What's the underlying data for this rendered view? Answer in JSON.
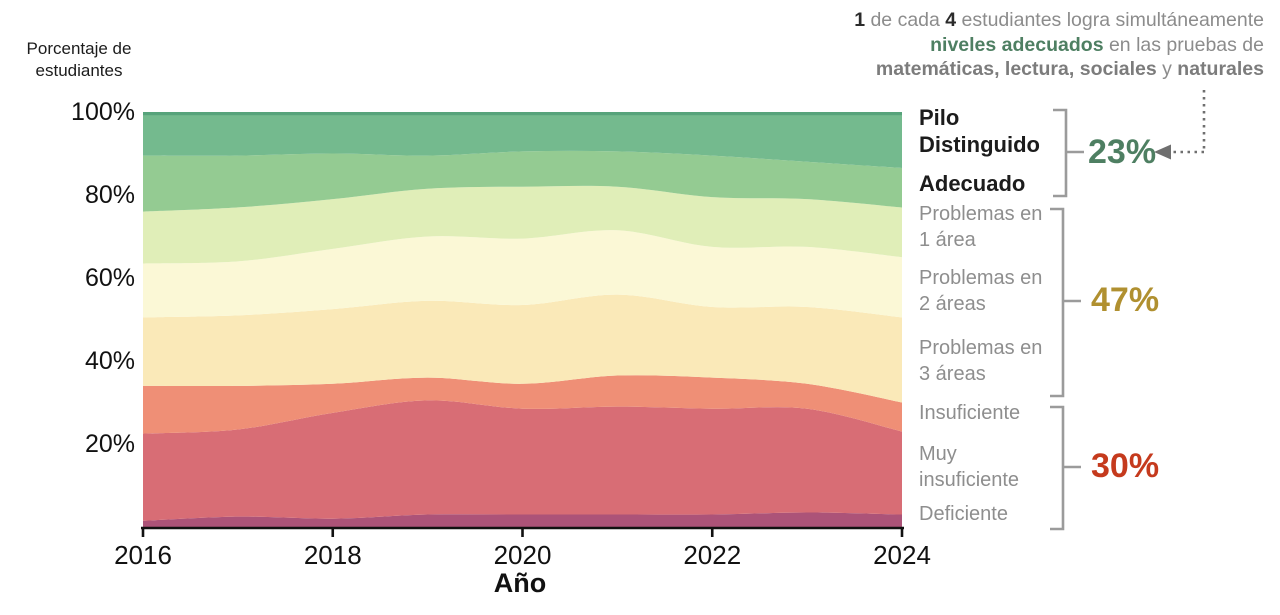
{
  "colors": {
    "background": "#ffffff",
    "text_dark": "#2b2b2b",
    "text_gray": "#8c8c8c",
    "green_accent": "#4e7f62",
    "gold_accent": "#b09030",
    "red_accent": "#c53a1d",
    "bracket": "#9b9b9b",
    "arrow": "#6f6f6f",
    "axis": "#111111",
    "top_edge_stripe": "#57a37b"
  },
  "y_axis": {
    "title": "Porcentaje de\nestudiantes",
    "tick_labels": [
      "100%",
      "80%",
      "60%",
      "40%",
      "20%"
    ]
  },
  "x_axis": {
    "title": "Año",
    "tick_labels": [
      "2016",
      "2018",
      "2020",
      "2022",
      "2024"
    ]
  },
  "annotation": {
    "lines": [
      [
        {
          "t": "1",
          "s": "bd"
        },
        {
          "t": " de cada ",
          "s": "g"
        },
        {
          "t": "4",
          "s": "bd"
        },
        {
          "t": " estudiantes logra simultáneamente",
          "s": "g"
        }
      ],
      [
        {
          "t": "niveles adecuados",
          "s": "bg"
        },
        {
          "t": " en las pruebas de",
          "s": "g"
        }
      ],
      [
        {
          "t": "matemáticas, ",
          "s": "bgr"
        },
        {
          "t": "lectura, ",
          "s": "bgr"
        },
        {
          "t": "sociales",
          "s": "bgr"
        },
        {
          "t": " y ",
          "s": "g"
        },
        {
          "t": "naturales",
          "s": "bgr"
        }
      ]
    ]
  },
  "right_labels": [
    {
      "text": "Pilo Distinguido",
      "emphasis": true
    },
    {
      "text": "Adecuado",
      "emphasis": true
    },
    {
      "text": "Problemas en 1 área",
      "emphasis": false
    },
    {
      "text": "Problemas en 2 áreas",
      "emphasis": false
    },
    {
      "text": "Problemas en 3 áreas",
      "emphasis": false
    },
    {
      "text": "Insuficiente",
      "emphasis": false
    },
    {
      "text": "Muy insuficiente",
      "emphasis": false
    },
    {
      "text": "Deficiente",
      "emphasis": false
    }
  ],
  "groups": [
    {
      "value": "23%",
      "color_key": "green_accent",
      "members": [
        "Pilo Distinguido",
        "Adecuado"
      ]
    },
    {
      "value": "47%",
      "color_key": "gold_accent",
      "members": [
        "Problemas en 1 área",
        "Problemas en 2 áreas",
        "Problemas en 3 áreas"
      ]
    },
    {
      "value": "30%",
      "color_key": "red_accent",
      "members": [
        "Insuficiente",
        "Muy insuficiente",
        "Deficiente"
      ]
    }
  ],
  "chart_data": {
    "type": "area",
    "stacked": true,
    "title": "",
    "xlabel": "Año",
    "ylabel": "Porcentaje de estudiantes",
    "grid": false,
    "legend_position": "right",
    "x": [
      2016,
      2017,
      2018,
      2019,
      2020,
      2021,
      2022,
      2023,
      2024
    ],
    "ylim": [
      0,
      100
    ],
    "y_tick_values": [
      100,
      80,
      60,
      40,
      20
    ],
    "x_tick_values": [
      2016,
      2018,
      2020,
      2022,
      2024
    ],
    "series_order": "bottom-to-top",
    "series": [
      {
        "name": "Deficiente",
        "color": "#ac5378",
        "values": [
          1.5,
          2.5,
          2,
          3,
          3,
          3,
          3,
          3.5,
          3
        ]
      },
      {
        "name": "Muy insuficiente",
        "color": "#d86d75",
        "values": [
          21,
          21,
          25.5,
          27.5,
          25.5,
          26,
          25.5,
          25,
          20
        ]
      },
      {
        "name": "Insuficiente",
        "color": "#ef8f76",
        "values": [
          11.5,
          10.5,
          7,
          5.5,
          6,
          7.5,
          7.5,
          6,
          7
        ]
      },
      {
        "name": "Problemas en 3 áreas",
        "color": "#fae9b8",
        "values": [
          16.5,
          17,
          18,
          18.5,
          19,
          19.5,
          17,
          18.5,
          20.5
        ]
      },
      {
        "name": "Problemas en 2 áreas",
        "color": "#fbf8d6",
        "values": [
          13,
          13,
          14.5,
          15.5,
          16,
          15.5,
          14.5,
          14.5,
          14.5
        ]
      },
      {
        "name": "Problemas en 1 área",
        "color": "#e0eeb8",
        "values": [
          12.5,
          13,
          12,
          11.5,
          12.5,
          10.5,
          12,
          11.5,
          12
        ]
      },
      {
        "name": "Adecuado",
        "color": "#94cb92",
        "values": [
          13.5,
          12.5,
          11,
          8,
          8.5,
          8.5,
          10,
          9,
          9.5
        ]
      },
      {
        "name": "Pilo Distinguido",
        "color": "#74ba8e",
        "values": [
          10.5,
          10.5,
          10,
          10.5,
          9.5,
          9.5,
          10.5,
          12,
          13.5
        ]
      }
    ],
    "group_totals_latest_year": {
      "2024": {
        "23%": [
          "Pilo Distinguido",
          "Adecuado"
        ],
        "47%": [
          "Problemas en 1-3 áreas"
        ],
        "30%": [
          "Insuficiente",
          "Muy insuficiente",
          "Deficiente"
        ]
      }
    }
  }
}
